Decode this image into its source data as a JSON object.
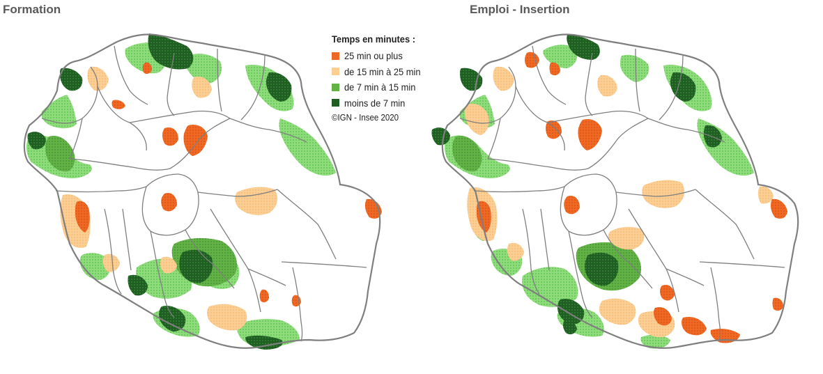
{
  "panels": [
    {
      "title": "Formation"
    },
    {
      "title": "Emploi - Insertion"
    }
  ],
  "legend": {
    "title": "Temps en minutes :",
    "items": [
      {
        "label": "25 min ou plus",
        "color": "#EE6A24"
      },
      {
        "label": "de 15 min à 25 min",
        "color": "#FBCE94"
      },
      {
        "label": "de 7 min à 15 min",
        "color": "#63B246"
      },
      {
        "label": "moins de 7 min",
        "color": "#1F5D22"
      }
    ],
    "source": "©IGN - Insee 2020"
  },
  "colors": {
    "boundary": "#7F7F7F",
    "title": "#595959",
    "light_green": "#7ED66C"
  }
}
